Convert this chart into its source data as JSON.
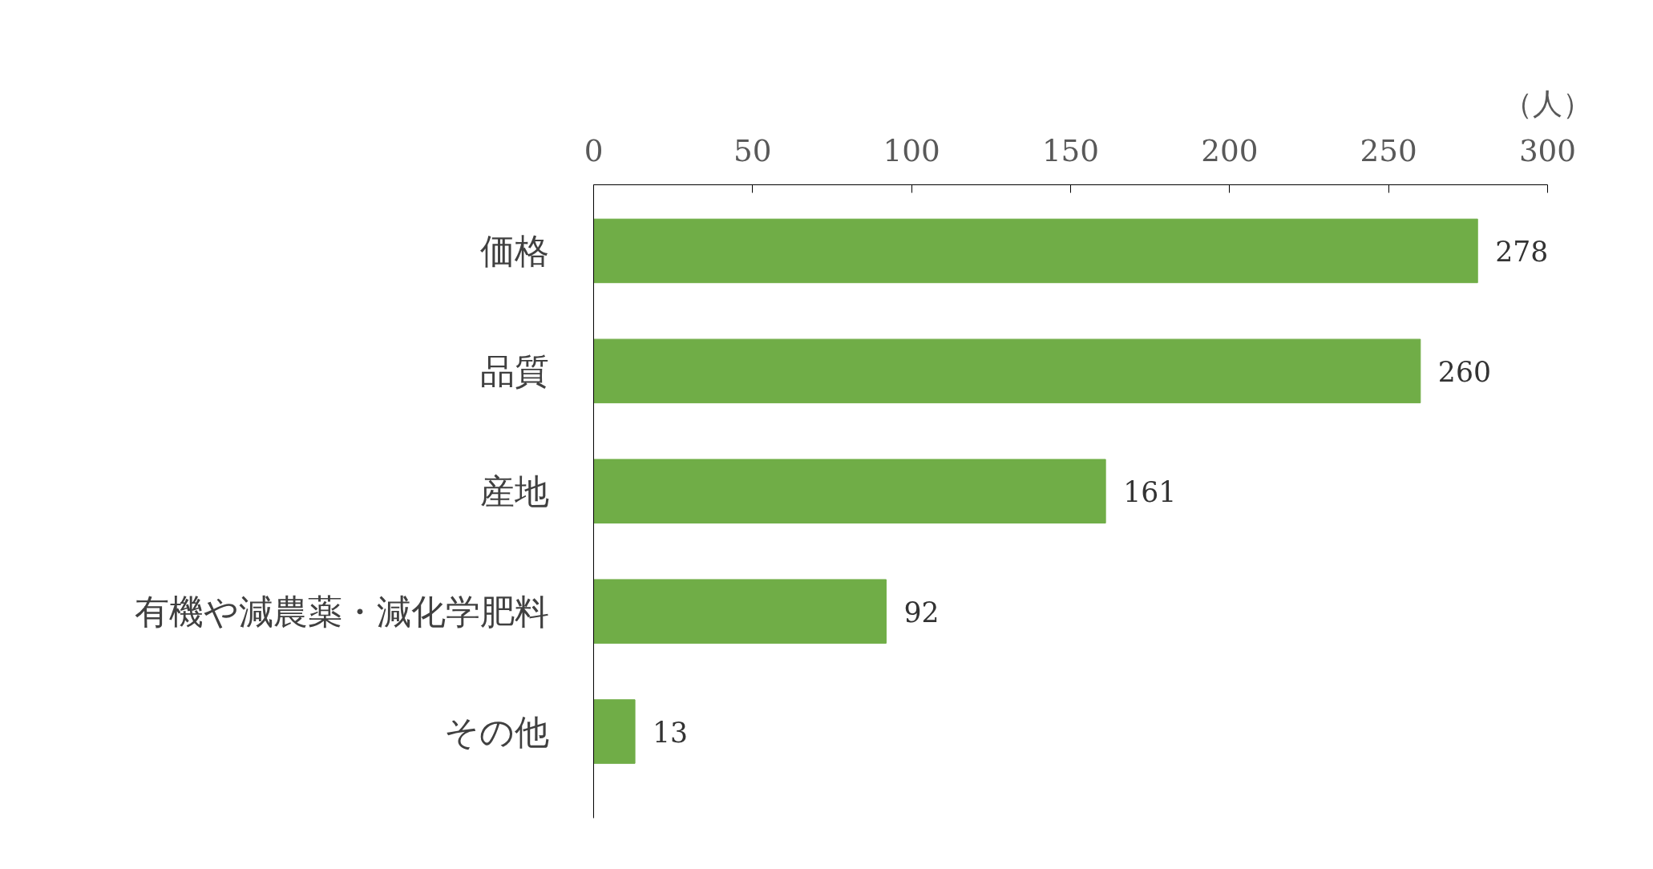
{
  "chart_data": {
    "type": "bar",
    "orientation": "horizontal",
    "xlabel": "（人）",
    "categories": [
      "価格",
      "品質",
      "産地",
      "有機や減農薬・減化学肥料",
      "その他"
    ],
    "values": [
      278,
      260,
      161,
      92,
      13
    ],
    "color": "#70ad47",
    "xlim": [
      0,
      300
    ],
    "xticks": [
      0,
      50,
      100,
      150,
      200,
      250,
      300
    ],
    "data_labels": true,
    "grid": false
  }
}
